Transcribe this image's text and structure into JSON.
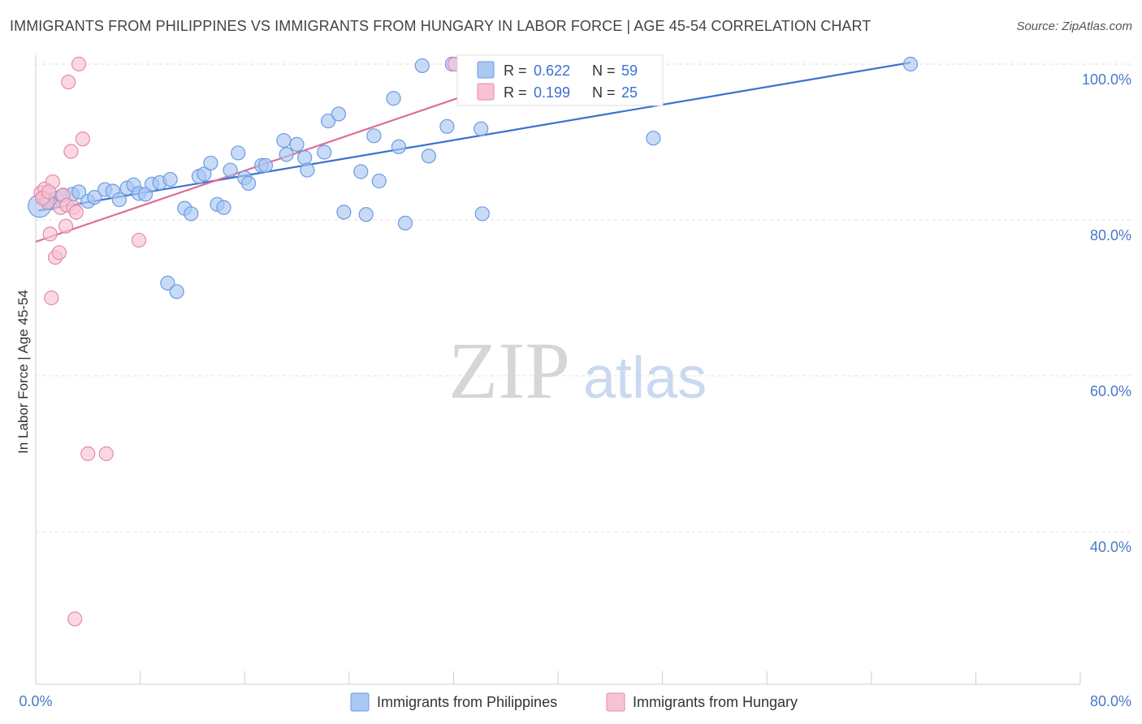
{
  "title": "IMMIGRANTS FROM PHILIPPINES VS IMMIGRANTS FROM HUNGARY IN LABOR FORCE | AGE 45-54 CORRELATION CHART",
  "source": "Source: ZipAtlas.com",
  "watermark": {
    "part1": "ZIP",
    "part2": "atlas"
  },
  "colors": {
    "philippines_fill": "#a9c8f2",
    "philippines_stroke": "#6c9be0",
    "philippines_line": "#3a72d0",
    "hungary_fill": "#f7c3d3",
    "hungary_stroke": "#e58aa8",
    "hungary_line": "#e06a94",
    "tick_text": "#4a78c8",
    "grid": "#e2e2e2"
  },
  "stats": [
    {
      "r_label": "R = ",
      "r_value": "0.622",
      "n_label": "N = ",
      "n_value": "59"
    },
    {
      "r_label": "R = ",
      "r_value": "0.199",
      "n_label": "N = ",
      "n_value": "25"
    }
  ],
  "chart_data": {
    "type": "scatter",
    "title": "IMMIGRANTS FROM PHILIPPINES VS IMMIGRANTS FROM HUNGARY IN LABOR FORCE | AGE 45-54 CORRELATION CHART",
    "xlabel": "",
    "ylabel": "In Labor Force | Age 45-54",
    "xlim": [
      0,
      80
    ],
    "ylim": [
      20,
      102
    ],
    "x_tick_labels": [
      "0.0%",
      "80.0%"
    ],
    "y_ticks": [
      {
        "value": 100,
        "label": "100.0%"
      },
      {
        "value": 80,
        "label": "80.0%"
      },
      {
        "value": 60,
        "label": "60.0%"
      },
      {
        "value": 40,
        "label": "40.0%"
      }
    ],
    "grid": true,
    "legend_position": "bottom",
    "series": [
      {
        "name": "Immigrants from Philippines",
        "trend": {
          "x": [
            0.2,
            67.0
          ],
          "y": [
            81.2,
            100.2
          ]
        },
        "points": [
          {
            "x": 0.3,
            "y": 81.8,
            "big": true
          },
          {
            "x": 0.8,
            "y": 82.6
          },
          {
            "x": 1.2,
            "y": 82.2
          },
          {
            "x": 1.6,
            "y": 82.8
          },
          {
            "x": 2.0,
            "y": 83.1
          },
          {
            "x": 2.8,
            "y": 83.3
          },
          {
            "x": 3.3,
            "y": 83.6
          },
          {
            "x": 4.0,
            "y": 82.4
          },
          {
            "x": 4.5,
            "y": 82.9
          },
          {
            "x": 5.3,
            "y": 83.9
          },
          {
            "x": 5.9,
            "y": 83.7
          },
          {
            "x": 6.4,
            "y": 82.6
          },
          {
            "x": 7.0,
            "y": 84.1
          },
          {
            "x": 7.5,
            "y": 84.5
          },
          {
            "x": 7.9,
            "y": 83.4
          },
          {
            "x": 8.4,
            "y": 83.3
          },
          {
            "x": 8.9,
            "y": 84.6
          },
          {
            "x": 9.5,
            "y": 84.8
          },
          {
            "x": 10.3,
            "y": 85.2
          },
          {
            "x": 11.4,
            "y": 81.5
          },
          {
            "x": 11.9,
            "y": 80.8
          },
          {
            "x": 12.5,
            "y": 85.6
          },
          {
            "x": 12.9,
            "y": 85.9
          },
          {
            "x": 13.4,
            "y": 87.3
          },
          {
            "x": 13.9,
            "y": 82.0
          },
          {
            "x": 14.4,
            "y": 81.6
          },
          {
            "x": 14.9,
            "y": 86.4
          },
          {
            "x": 15.5,
            "y": 88.6
          },
          {
            "x": 16.0,
            "y": 85.4
          },
          {
            "x": 16.3,
            "y": 84.7
          },
          {
            "x": 17.3,
            "y": 87.0
          },
          {
            "x": 17.6,
            "y": 87.0
          },
          {
            "x": 19.0,
            "y": 90.2
          },
          {
            "x": 19.2,
            "y": 88.4
          },
          {
            "x": 20.0,
            "y": 89.7
          },
          {
            "x": 20.6,
            "y": 88.0
          },
          {
            "x": 20.8,
            "y": 86.4
          },
          {
            "x": 22.1,
            "y": 88.7
          },
          {
            "x": 22.4,
            "y": 92.7
          },
          {
            "x": 23.2,
            "y": 93.6
          },
          {
            "x": 23.6,
            "y": 81.0
          },
          {
            "x": 24.9,
            "y": 86.2
          },
          {
            "x": 25.3,
            "y": 80.7
          },
          {
            "x": 25.9,
            "y": 90.8
          },
          {
            "x": 26.3,
            "y": 85.0
          },
          {
            "x": 27.4,
            "y": 95.6
          },
          {
            "x": 27.8,
            "y": 89.4
          },
          {
            "x": 28.3,
            "y": 79.6
          },
          {
            "x": 29.6,
            "y": 99.8
          },
          {
            "x": 30.1,
            "y": 88.2
          },
          {
            "x": 31.5,
            "y": 92.0
          },
          {
            "x": 31.9,
            "y": 100.0
          },
          {
            "x": 34.1,
            "y": 91.7
          },
          {
            "x": 34.2,
            "y": 80.8
          },
          {
            "x": 47.3,
            "y": 90.5
          },
          {
            "x": 67.0,
            "y": 100.0
          },
          {
            "x": 10.1,
            "y": 71.9
          },
          {
            "x": 10.8,
            "y": 70.8
          },
          {
            "x": 0.6,
            "y": 82.9
          }
        ]
      },
      {
        "name": "Immigrants from Hungary",
        "trend": {
          "x": [
            0.0,
            37.0
          ],
          "y": [
            77.2,
            98.3
          ]
        },
        "points": [
          {
            "x": 0.4,
            "y": 83.5
          },
          {
            "x": 0.7,
            "y": 84.0
          },
          {
            "x": 0.9,
            "y": 82.3
          },
          {
            "x": 1.1,
            "y": 78.2
          },
          {
            "x": 1.2,
            "y": 70.0
          },
          {
            "x": 1.3,
            "y": 84.9
          },
          {
            "x": 1.5,
            "y": 75.2
          },
          {
            "x": 1.8,
            "y": 75.8
          },
          {
            "x": 1.9,
            "y": 81.6
          },
          {
            "x": 2.1,
            "y": 83.2
          },
          {
            "x": 2.3,
            "y": 79.2
          },
          {
            "x": 2.4,
            "y": 81.9
          },
          {
            "x": 2.5,
            "y": 97.7
          },
          {
            "x": 2.7,
            "y": 88.8
          },
          {
            "x": 2.9,
            "y": 81.6
          },
          {
            "x": 3.1,
            "y": 81.0
          },
          {
            "x": 3.3,
            "y": 100.0
          },
          {
            "x": 3.6,
            "y": 90.4
          },
          {
            "x": 4.0,
            "y": 50.0
          },
          {
            "x": 5.4,
            "y": 50.0
          },
          {
            "x": 7.9,
            "y": 77.4
          },
          {
            "x": 3.0,
            "y": 28.8
          },
          {
            "x": 32.1,
            "y": 100.0
          },
          {
            "x": 0.5,
            "y": 82.8
          },
          {
            "x": 1.0,
            "y": 83.6
          }
        ]
      }
    ]
  },
  "legend": [
    {
      "label": "Immigrants from Philippines"
    },
    {
      "label": "Immigrants from Hungary"
    }
  ]
}
